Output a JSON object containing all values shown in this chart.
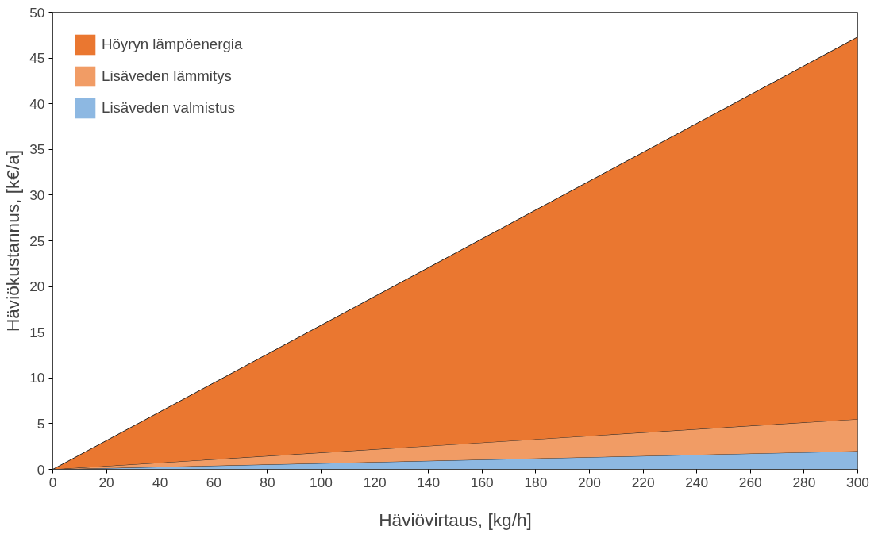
{
  "chart_data": {
    "type": "area",
    "stacked": true,
    "xlabel": "Häviövirtaus, [kg/h]",
    "ylabel": "Häviökustannus, [k€/a]",
    "x": [
      0,
      300
    ],
    "series": [
      {
        "name": "Lisäveden valmistus",
        "color": "#8db8e2",
        "values": [
          0,
          2.0
        ]
      },
      {
        "name": "Lisäveden lämmitys",
        "color": "#f19c65",
        "values": [
          0,
          3.5
        ]
      },
      {
        "name": "Höyryn lämpöenergia",
        "color": "#ea7730",
        "values": [
          0,
          41.8
        ]
      }
    ],
    "xlim": [
      0,
      300
    ],
    "xticks": [
      0,
      20,
      40,
      60,
      80,
      100,
      120,
      140,
      160,
      180,
      200,
      220,
      240,
      260,
      280,
      300
    ],
    "ylim": [
      0,
      50
    ],
    "yticks": [
      0,
      5,
      10,
      15,
      20,
      25,
      30,
      35,
      40,
      45,
      50
    ],
    "grid": false,
    "legend": "top left"
  }
}
